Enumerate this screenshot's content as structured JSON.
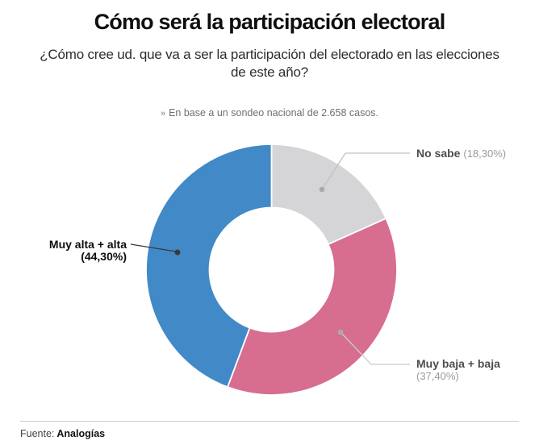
{
  "header": {
    "title": "Cómo será la participación electoral",
    "subtitle_line1": "¿Cómo cree ud. que va a ser la participación del electorado en las elecciones",
    "subtitle_line2": "de este año?",
    "note_marker": "»",
    "note_text": "En base a un sondeo nacional de 2.658 casos."
  },
  "chart_data": {
    "type": "pie",
    "donut": true,
    "title": "Cómo será la participación electoral",
    "start_angle_deg_from_top": 0,
    "direction": "clockwise",
    "segments": [
      {
        "label": "No sabe",
        "value": 18.3,
        "value_label": "(18,30%)",
        "color": "#d5d5d7"
      },
      {
        "label": "Muy baja + baja",
        "value": 37.4,
        "value_label": "(37,40%)",
        "color": "#d76d8f"
      },
      {
        "label": "Muy alta + alta",
        "value": 44.3,
        "value_label": "(44,30%)",
        "color": "#4189c7"
      }
    ]
  },
  "footer": {
    "source_label": "Fuente:",
    "source_name": "Analogías"
  }
}
